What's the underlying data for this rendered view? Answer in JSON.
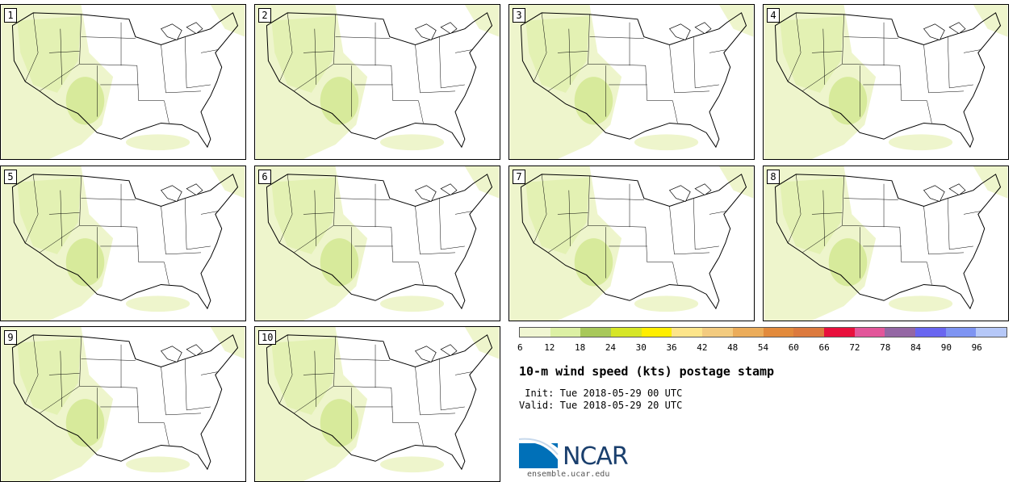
{
  "panels": [
    {
      "label": "1"
    },
    {
      "label": "2"
    },
    {
      "label": "3"
    },
    {
      "label": "4"
    },
    {
      "label": "5"
    },
    {
      "label": "6"
    },
    {
      "label": "7"
    },
    {
      "label": "8"
    },
    {
      "label": "9"
    },
    {
      "label": "10"
    }
  ],
  "legend": {
    "colors": [
      "#f0f6d2",
      "#dcf0a4",
      "#a8c85a",
      "#d6e627",
      "#ffee00",
      "#fde58a",
      "#f3cb7f",
      "#ebac5a",
      "#e28a3c",
      "#dc7a3e",
      "#e8103c",
      "#e2569a",
      "#9467a4",
      "#6966f0",
      "#7e94f2",
      "#b6c8f8"
    ],
    "ticks": [
      "6",
      "12",
      "18",
      "24",
      "30",
      "36",
      "42",
      "48",
      "54",
      "60",
      "66",
      "72",
      "78",
      "84",
      "90",
      "96"
    ]
  },
  "title": "10-m wind speed (kts) postage stamp",
  "init": " Init: Tue 2018-05-29 00 UTC",
  "valid": "Valid: Tue 2018-05-29 20 UTC",
  "logo": {
    "text": "NCAR",
    "url": "ensemble.ucar.edu",
    "brand_color": "#1a3f6d",
    "accent_color": "#0070b8"
  },
  "map_colors": {
    "light_wind": "#eef5cc",
    "moderate_wind": "#dcefa2",
    "stronger_wind": "#c8e27a",
    "land_outline": "#000000"
  }
}
